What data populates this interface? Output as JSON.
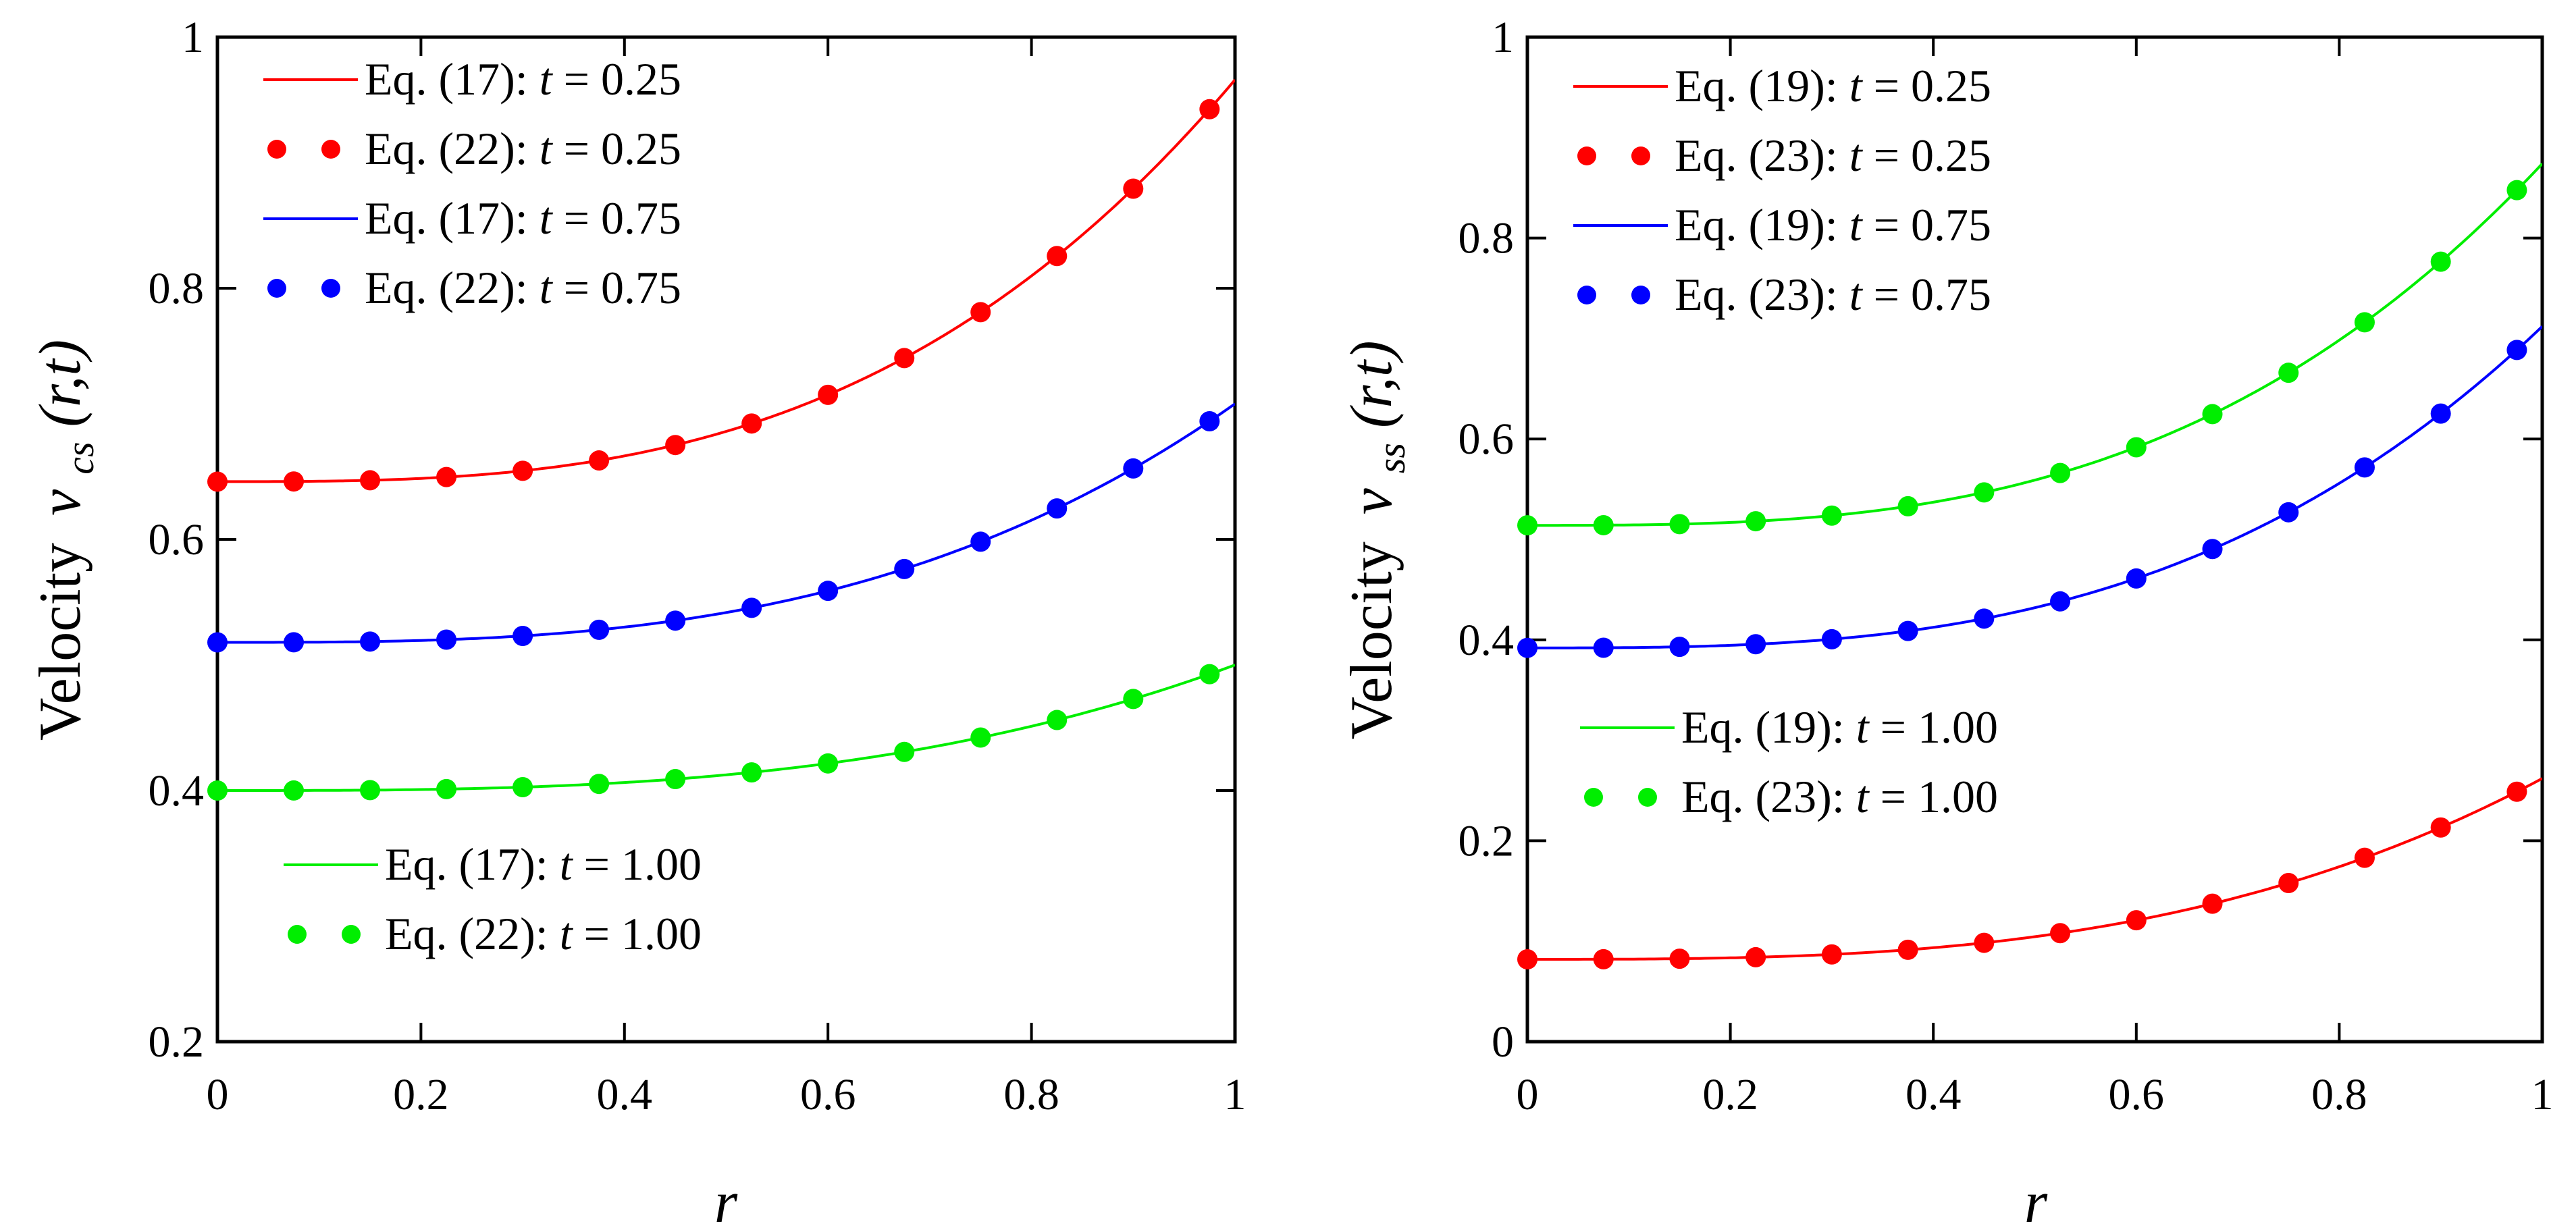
{
  "chart_data": [
    {
      "type": "line",
      "ylabel_prefix": "Velocity",
      "ylabel_var": "v",
      "ylabel_sub": "cs",
      "ylabel_args": "(r,t)",
      "xlabel": "r",
      "xlim": [
        0,
        1
      ],
      "ylim": [
        0.2,
        1
      ],
      "xticks": [
        "0",
        "0.2",
        "0.4",
        "0.6",
        "0.8",
        "1"
      ],
      "yticks": [
        "0.2",
        "0.4",
        "0.6",
        "0.8",
        "1"
      ],
      "legend_top": [
        {
          "label": "Eq. (17): ",
          "var": "t",
          "val": " = 0.25",
          "style": "line",
          "color": "#ff0000"
        },
        {
          "label": "Eq. (22): ",
          "var": "t",
          "val": " = 0.25",
          "style": "dots",
          "color": "#ff0000"
        },
        {
          "label": "Eq. (17): ",
          "var": "t",
          "val": " = 0.75",
          "style": "line",
          "color": "#0000ff"
        },
        {
          "label": "Eq. (22): ",
          "var": "t",
          "val": " = 0.75",
          "style": "dots",
          "color": "#0000ff"
        }
      ],
      "legend_bottom": [
        {
          "label": "Eq. (17): ",
          "var": "t",
          "val": " = 1.00",
          "style": "line",
          "color": "#00ee00"
        },
        {
          "label": "Eq. (22): ",
          "var": "t",
          "val": " = 1.00",
          "style": "dots",
          "color": "#00ee00"
        }
      ],
      "series": [
        {
          "name": "t = 0.25",
          "color": "#ff0000",
          "base": 0.646,
          "amp": 0.32
        },
        {
          "name": "t = 0.75",
          "color": "#0000ff",
          "base": 0.518,
          "amp": 0.19
        },
        {
          "name": "t = 1.00",
          "color": "#00ee00",
          "base": 0.4,
          "amp": 0.1
        }
      ],
      "dot_x": [
        0,
        0.075,
        0.15,
        0.225,
        0.3,
        0.375,
        0.45,
        0.525,
        0.6,
        0.675,
        0.75,
        0.825,
        0.9,
        0.975
      ]
    },
    {
      "type": "line",
      "ylabel_prefix": "Velocity",
      "ylabel_var": "v",
      "ylabel_sub": "ss",
      "ylabel_args": "(r,t)",
      "xlabel": "r",
      "xlim": [
        0,
        1
      ],
      "ylim": [
        0,
        1
      ],
      "xticks": [
        "0",
        "0.2",
        "0.4",
        "0.6",
        "0.8",
        "1"
      ],
      "yticks": [
        "0",
        "0.2",
        "0.4",
        "0.6",
        "0.8",
        "1"
      ],
      "legend_top": [
        {
          "label": "Eq. (19): ",
          "var": "t",
          "val": " = 0.25",
          "style": "line",
          "color": "#ff0000"
        },
        {
          "label": "Eq. (23): ",
          "var": "t",
          "val": " = 0.25",
          "style": "dots",
          "color": "#ff0000"
        },
        {
          "label": "Eq. (19): ",
          "var": "t",
          "val": " = 0.75",
          "style": "line",
          "color": "#0000ff"
        },
        {
          "label": "Eq. (23): ",
          "var": "t",
          "val": " = 0.75",
          "style": "dots",
          "color": "#0000ff"
        }
      ],
      "legend_bottom": [
        {
          "label": "Eq. (19): ",
          "var": "t",
          "val": " = 1.00",
          "style": "line",
          "color": "#00ee00"
        },
        {
          "label": "Eq. (23): ",
          "var": "t",
          "val": " = 1.00",
          "style": "dots",
          "color": "#00ee00"
        }
      ],
      "series": [
        {
          "name": "t = 0.25",
          "color": "#ff0000",
          "base": 0.082,
          "amp": 0.18
        },
        {
          "name": "t = 0.75",
          "color": "#0000ff",
          "base": 0.392,
          "amp": 0.32
        },
        {
          "name": "t = 1.00",
          "color": "#00ee00",
          "base": 0.514,
          "amp": 0.36
        }
      ],
      "dot_x": [
        0,
        0.075,
        0.15,
        0.225,
        0.3,
        0.375,
        0.45,
        0.525,
        0.6,
        0.675,
        0.75,
        0.825,
        0.9,
        0.975
      ]
    }
  ]
}
